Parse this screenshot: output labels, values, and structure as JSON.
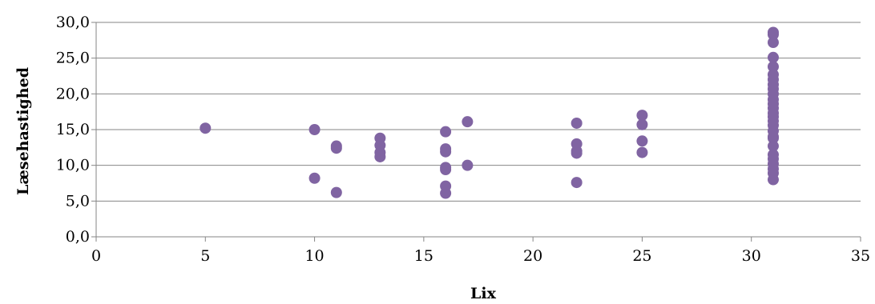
{
  "chart_data": {
    "type": "scatter",
    "xlabel": "Lix",
    "ylabel": "Læsehastighed",
    "xlim": [
      0,
      35
    ],
    "ylim": [
      0,
      30
    ],
    "x_ticks": [
      "0",
      "5",
      "10",
      "15",
      "20",
      "25",
      "30",
      "35"
    ],
    "y_ticks": [
      "0,0",
      "5,0",
      "10,0",
      "15,0",
      "20,0",
      "25,0",
      "30,0"
    ],
    "grid": "horizontal",
    "legend": "none",
    "marker_color": "#8064a2",
    "points": [
      [
        5,
        15.2
      ],
      [
        10,
        15.0
      ],
      [
        10,
        8.2
      ],
      [
        11,
        12.7
      ],
      [
        11,
        12.4
      ],
      [
        11,
        6.2
      ],
      [
        13,
        13.8
      ],
      [
        13,
        12.8
      ],
      [
        13,
        11.8
      ],
      [
        13,
        11.2
      ],
      [
        16,
        14.7
      ],
      [
        16,
        12.3
      ],
      [
        16,
        11.9
      ],
      [
        16,
        9.7
      ],
      [
        16,
        9.4
      ],
      [
        16,
        7.1
      ],
      [
        16,
        6.1
      ],
      [
        17,
        16.1
      ],
      [
        17,
        10.0
      ],
      [
        22,
        15.9
      ],
      [
        22,
        13.0
      ],
      [
        22,
        12.0
      ],
      [
        22,
        11.7
      ],
      [
        22,
        7.6
      ],
      [
        25,
        17.0
      ],
      [
        25,
        15.7
      ],
      [
        25,
        13.4
      ],
      [
        25,
        11.8
      ],
      [
        31,
        28.6
      ],
      [
        31,
        28.3
      ],
      [
        31,
        27.2
      ],
      [
        31,
        25.1
      ],
      [
        31,
        23.8
      ],
      [
        31,
        22.7
      ],
      [
        31,
        22.0
      ],
      [
        31,
        21.3
      ],
      [
        31,
        20.7
      ],
      [
        31,
        20.0
      ],
      [
        31,
        19.2
      ],
      [
        31,
        18.6
      ],
      [
        31,
        18.0
      ],
      [
        31,
        17.3
      ],
      [
        31,
        16.8
      ],
      [
        31,
        16.2
      ],
      [
        31,
        15.6
      ],
      [
        31,
        14.8
      ],
      [
        31,
        14.0
      ],
      [
        31,
        13.8
      ],
      [
        31,
        12.7
      ],
      [
        31,
        11.5
      ],
      [
        31,
        10.9
      ],
      [
        31,
        10.2
      ],
      [
        31,
        9.5
      ],
      [
        31,
        8.9
      ],
      [
        31,
        8.0
      ]
    ]
  }
}
